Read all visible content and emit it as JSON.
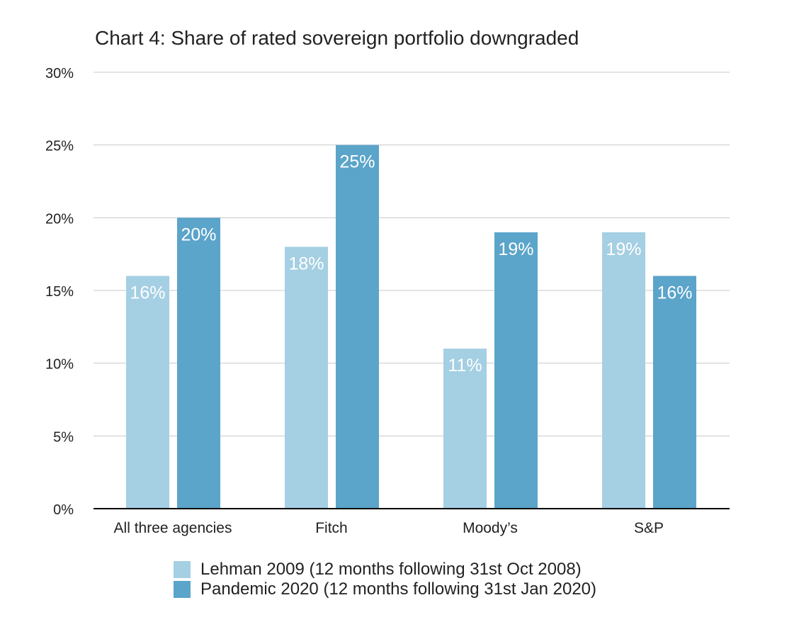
{
  "chart_data": {
    "type": "bar",
    "title": "Chart 4: Share of rated sovereign portfolio downgraded",
    "xlabel": "",
    "ylabel": "",
    "categories": [
      "All three agencies",
      "Fitch",
      "Moody’s",
      "S&P"
    ],
    "series": [
      {
        "name": "Lehman 2009 (12 months following 31st Oct 2008)",
        "values": [
          16,
          18,
          11,
          19
        ],
        "labels": [
          "16%",
          "18%",
          "11%",
          "19%"
        ],
        "color": "#a5cfe3"
      },
      {
        "name": "Pandemic 2020 (12 months following 31st Jan 2020)",
        "values": [
          20,
          25,
          19,
          16
        ],
        "labels": [
          "20%",
          "25%",
          "19%",
          "16%"
        ],
        "color": "#5ba4ca"
      }
    ],
    "ylim": [
      0,
      30
    ],
    "yticks": [
      0,
      5,
      10,
      15,
      20,
      25,
      30
    ],
    "ytick_labels": [
      "0%",
      "5%",
      "10%",
      "15%",
      "20%",
      "25%",
      "30%"
    ],
    "grid": true,
    "legend_position": "bottom",
    "colors": {
      "gridline": "#c8c8c8",
      "axis": "#000000",
      "data_label": "#ffffff"
    }
  }
}
